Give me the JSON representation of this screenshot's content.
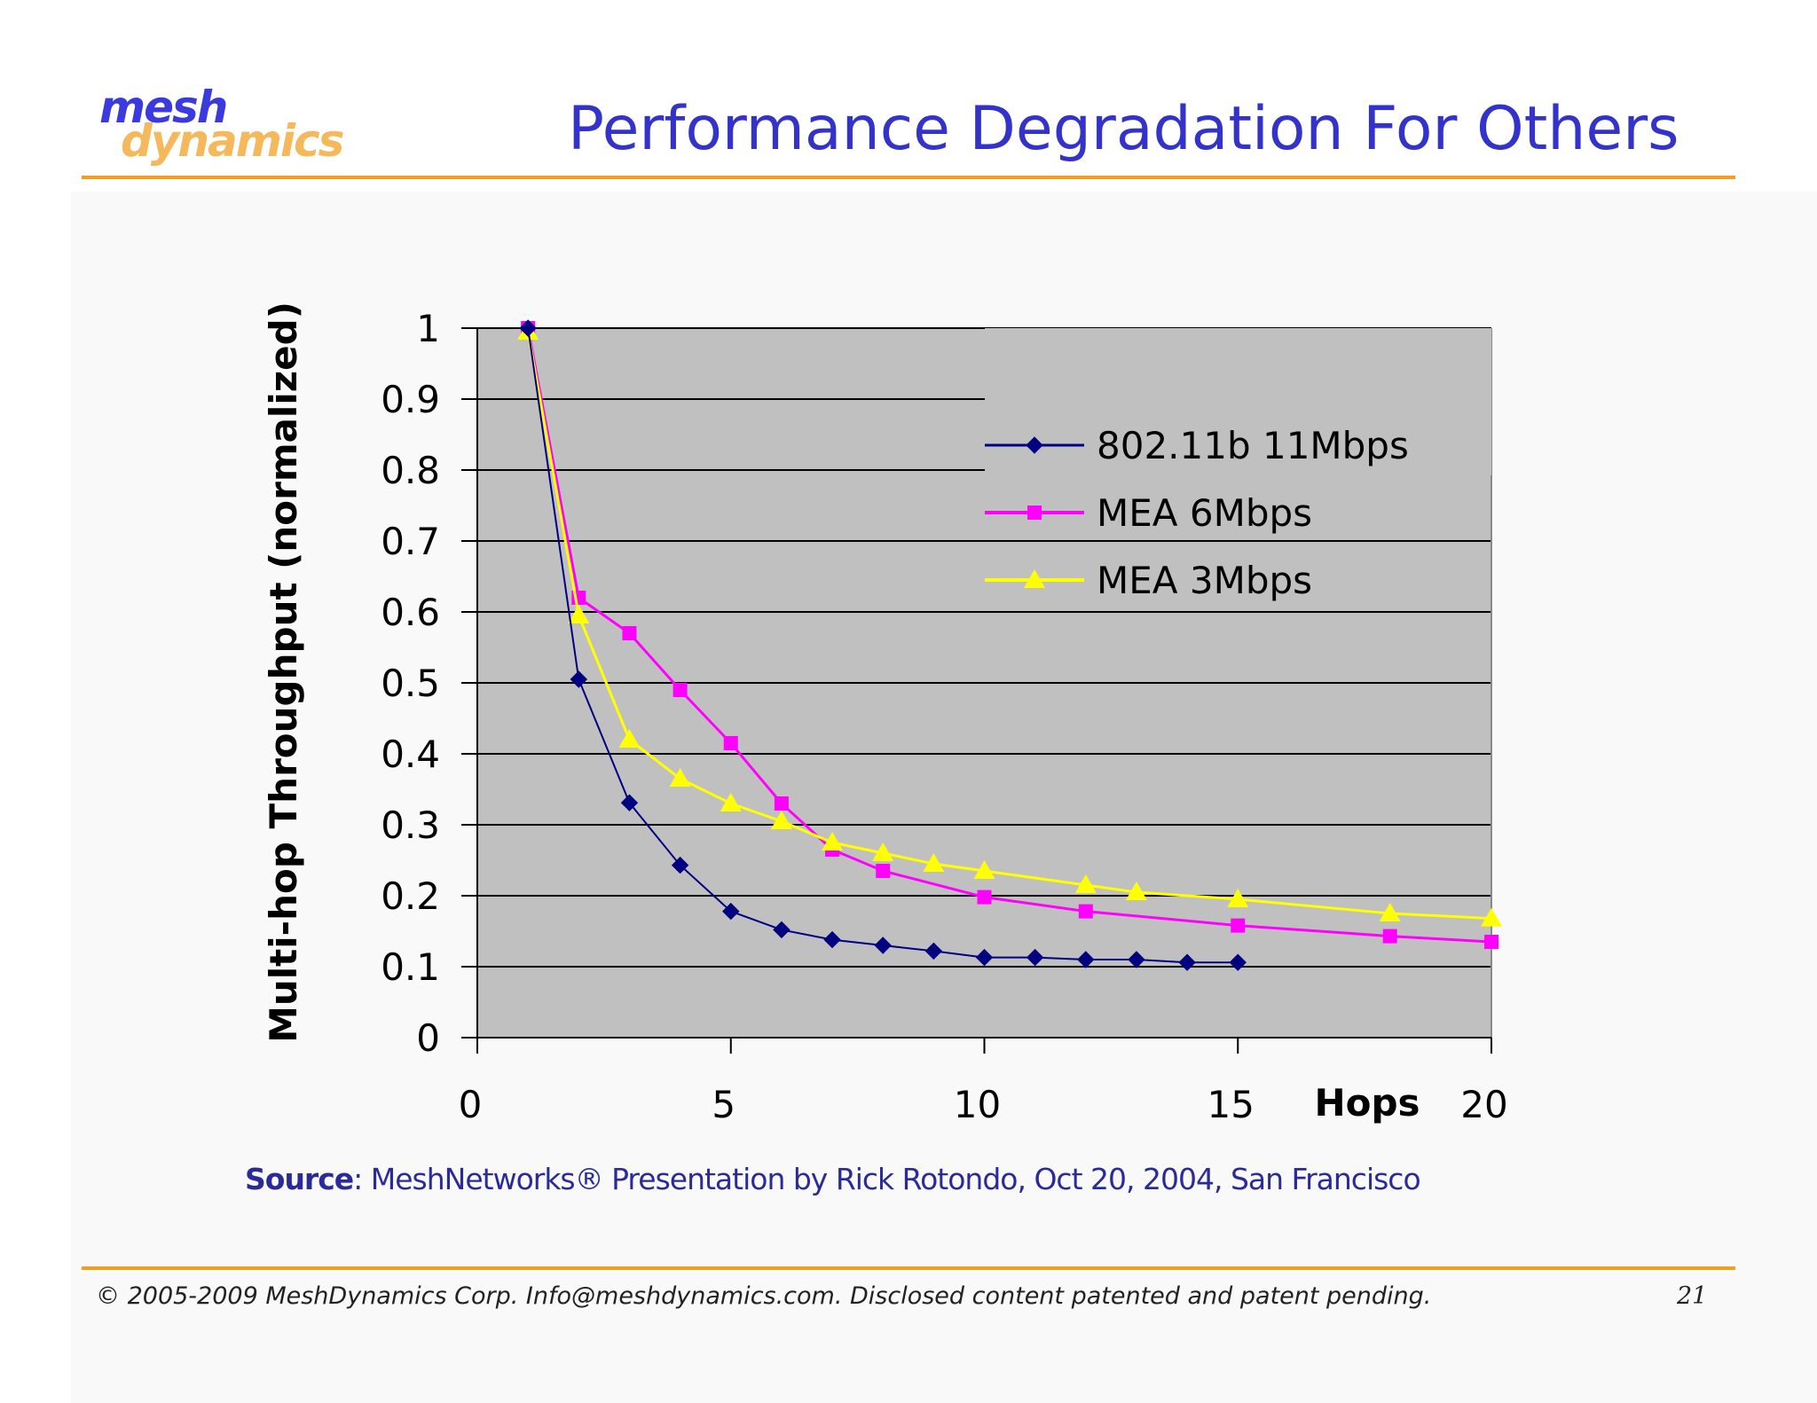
{
  "logo": {
    "line1": "mesh",
    "line2": "dynamics"
  },
  "slide_title": "Performance Degradation For Others",
  "source": {
    "label": "Source",
    "text": ": MeshNetworks® Presentation by Rick Rotondo, Oct 20, 2004, San Francisco"
  },
  "footer": {
    "text": "© 2005-2009 MeshDynamics Corp.   Info@meshdynamics.com.  Disclosed content patented and patent pending.",
    "page_number": "21"
  },
  "colors": {
    "title": "#3333cc",
    "rule": "#f0a020",
    "plot_background": "#c0c0c0",
    "series_80211b": "#000080",
    "series_mea6": "#ff00ff",
    "series_mea3": "#ffff00"
  },
  "chart_data": {
    "type": "line",
    "title": "",
    "xlabel": "Hops",
    "ylabel": "Multi-hop Throughput (normalized)",
    "xlim": [
      0,
      20
    ],
    "ylim": [
      0,
      1
    ],
    "x_ticks": [
      "0",
      "5",
      "10",
      "15",
      "20"
    ],
    "y_ticks": [
      "0",
      "0.1",
      "0.2",
      "0.3",
      "0.4",
      "0.5",
      "0.6",
      "0.7",
      "0.8",
      "0.9",
      "1"
    ],
    "grid": "horizontal",
    "legend_position": "upper-right",
    "series": [
      {
        "name": "802.11b 11Mbps",
        "color": "#000080",
        "marker": "diamond",
        "x": [
          1,
          2,
          3,
          4,
          5,
          6,
          7,
          8,
          9,
          10,
          11,
          12,
          13,
          14,
          15
        ],
        "y": [
          1.0,
          0.505,
          0.331,
          0.243,
          0.178,
          0.152,
          0.138,
          0.13,
          0.122,
          0.113,
          0.113,
          0.11,
          0.11,
          0.106,
          0.106
        ]
      },
      {
        "name": "MEA 6Mbps",
        "color": "#ff00ff",
        "marker": "square",
        "x": [
          1,
          2,
          3,
          4,
          5,
          6,
          7,
          8,
          10,
          12,
          15,
          18,
          20
        ],
        "y": [
          1.0,
          0.62,
          0.57,
          0.49,
          0.415,
          0.33,
          0.265,
          0.235,
          0.198,
          0.178,
          0.158,
          0.143,
          0.135
        ]
      },
      {
        "name": "MEA 3Mbps",
        "color": "#ffff00",
        "marker": "triangle",
        "x": [
          1,
          2,
          3,
          4,
          5,
          6,
          7,
          8,
          9,
          10,
          12,
          13,
          15,
          18,
          20
        ],
        "y": [
          0.995,
          0.595,
          0.42,
          0.365,
          0.33,
          0.305,
          0.275,
          0.26,
          0.245,
          0.235,
          0.215,
          0.205,
          0.195,
          0.175,
          0.168
        ]
      }
    ]
  }
}
